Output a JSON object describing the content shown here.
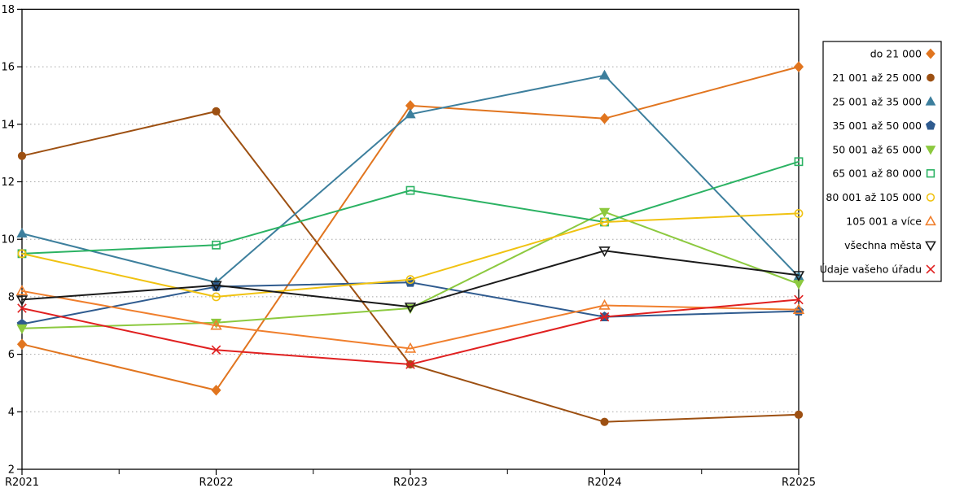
{
  "chart_data": {
    "type": "line",
    "title": "",
    "xlabel": "",
    "ylabel": "",
    "categories": [
      "R2021",
      "R2022",
      "R2023",
      "R2024",
      "R2025"
    ],
    "ylim": [
      2,
      18
    ],
    "ytick_step": 2,
    "grid": "horizontal dotted",
    "legend_position": "right outside",
    "series": [
      {
        "name": "do 21 000",
        "color": "#e1751f",
        "marker": "diamond",
        "style": "filled",
        "values": [
          6.35,
          4.75,
          14.65,
          14.2,
          16.0
        ]
      },
      {
        "name": "21 001 až 25 000",
        "color": "#9d5012",
        "marker": "circle",
        "style": "filled",
        "values": [
          12.9,
          14.45,
          5.65,
          3.65,
          3.9
        ]
      },
      {
        "name": "25 001 až 35 000",
        "color": "#3d7f9d",
        "marker": "triangle-up",
        "style": "filled",
        "values": [
          10.2,
          8.5,
          14.35,
          15.7,
          8.7
        ]
      },
      {
        "name": "35 001 až 50 000",
        "color": "#2f5b8f",
        "marker": "pentagon",
        "style": "filled",
        "values": [
          7.05,
          8.35,
          8.5,
          7.3,
          7.5
        ]
      },
      {
        "name": "50 001 až 65 000",
        "color": "#8cc93f",
        "marker": "triangle-down",
        "style": "filled",
        "values": [
          6.9,
          7.1,
          7.6,
          10.95,
          8.45
        ]
      },
      {
        "name": "65 001 až 80 000",
        "color": "#2bb263",
        "marker": "square",
        "style": "open",
        "values": [
          9.5,
          9.8,
          11.7,
          10.6,
          12.7
        ]
      },
      {
        "name": "80 001 až 105 000",
        "color": "#f0c211",
        "marker": "circle",
        "style": "open",
        "values": [
          9.5,
          8.0,
          8.6,
          10.6,
          10.9
        ]
      },
      {
        "name": "105 001 a více",
        "color": "#f07f2d",
        "marker": "triangle-up",
        "style": "open",
        "values": [
          8.2,
          7.0,
          6.2,
          7.7,
          7.55
        ]
      },
      {
        "name": "všechna města",
        "color": "#1a1a1a",
        "marker": "triangle-down",
        "style": "open",
        "values": [
          7.9,
          8.4,
          7.65,
          9.6,
          8.75
        ]
      },
      {
        "name": "Údaje vašeho úřadu",
        "color": "#e02020",
        "marker": "x",
        "style": "open",
        "values": [
          7.6,
          6.15,
          5.65,
          7.3,
          7.9
        ]
      }
    ],
    "colors": {
      "background": "#ffffff",
      "grid": "#a8a8a8",
      "axis": "#000000",
      "legend_border": "#000000"
    }
  }
}
